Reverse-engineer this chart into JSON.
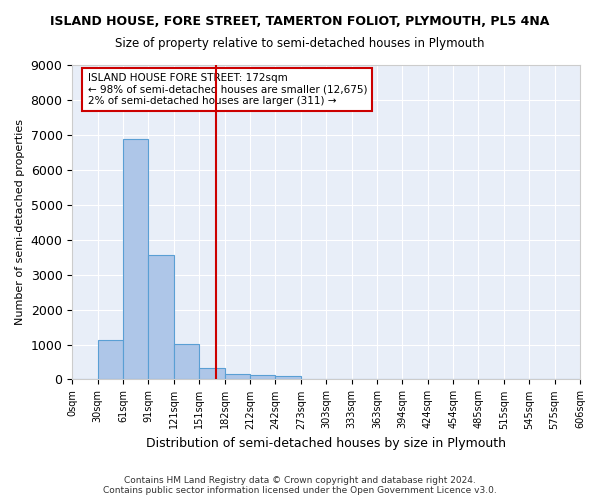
{
  "title": "ISLAND HOUSE, FORE STREET, TAMERTON FOLIOT, PLYMOUTH, PL5 4NA",
  "subtitle": "Size of property relative to semi-detached houses in Plymouth",
  "xlabel": "Distribution of semi-detached houses by size in Plymouth",
  "ylabel": "Number of semi-detached properties",
  "footer_line1": "Contains HM Land Registry data © Crown copyright and database right 2024.",
  "footer_line2": "Contains public sector information licensed under the Open Government Licence v3.0.",
  "bin_labels": [
    "0sqm",
    "30sqm",
    "61sqm",
    "91sqm",
    "121sqm",
    "151sqm",
    "182sqm",
    "212sqm",
    "242sqm",
    "273sqm",
    "303sqm",
    "333sqm",
    "363sqm",
    "394sqm",
    "424sqm",
    "454sqm",
    "485sqm",
    "515sqm",
    "545sqm",
    "575sqm",
    "606sqm"
  ],
  "bar_values": [
    0,
    1130,
    6870,
    3560,
    1010,
    340,
    150,
    120,
    95,
    0,
    0,
    0,
    0,
    0,
    0,
    0,
    0,
    0,
    0,
    0
  ],
  "bar_color": "#aec6e8",
  "bar_edge_color": "#5a9fd4",
  "background_color": "#e8eef8",
  "grid_color": "#ffffff",
  "vline_x": 5.677,
  "vline_color": "#cc0000",
  "annotation_text": "ISLAND HOUSE FORE STREET: 172sqm\n← 98% of semi-detached houses are smaller (12,675)\n2% of semi-detached houses are larger (311) →",
  "annotation_box_color": "#ffffff",
  "annotation_box_edge_color": "#cc0000",
  "ylim": [
    0,
    9000
  ],
  "yticks": [
    0,
    1000,
    2000,
    3000,
    4000,
    5000,
    6000,
    7000,
    8000,
    9000
  ]
}
